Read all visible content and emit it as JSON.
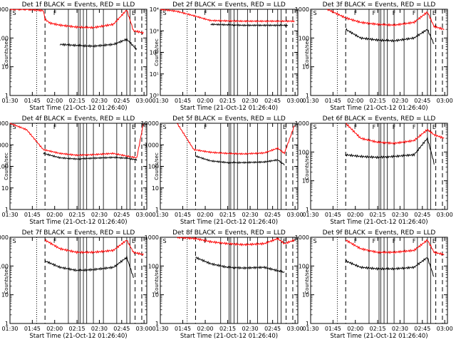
{
  "chart_data": [
    {
      "type": "line",
      "title": "Det 1f BLACK = Events, RED = LLD",
      "xlabel": "Start Time (21-Oct-12 01:26:40)",
      "ylabel": "Counts/sec",
      "x_ticks": [
        "01:30",
        "01:45",
        "02:00",
        "02:15",
        "02:30",
        "02:45",
        "03:00"
      ],
      "ylim": [
        1,
        1000
      ],
      "y_scale": "log",
      "y_ticks": [
        "1",
        "10",
        "100",
        "1000"
      ],
      "markers": [
        "S",
        "F",
        "E"
      ],
      "series": [
        {
          "color": "#000000",
          "x": [
            21,
            24,
            30,
            40,
            50,
            62,
            70,
            76
          ],
          "values": [
            null,
            null,
            60,
            55,
            52,
            60,
            90,
            40
          ]
        },
        {
          "color": "#ff0000",
          "x": [
            0,
            10,
            20,
            21,
            24,
            30,
            40,
            50,
            62,
            70,
            74,
            80
          ],
          "values": [
            1000,
            1000,
            900,
            450,
            330,
            280,
            240,
            230,
            300,
            950,
            180,
            150
          ]
        }
      ]
    },
    {
      "type": "line",
      "title": "Det 2f BLACK = Events, RED = LLD",
      "xlabel": "Start Time (21-Oct-12 01:26:40)",
      "ylabel": "Counts/sec",
      "x_ticks": [
        "01:30",
        "01:45",
        "02:00",
        "02:15",
        "02:30",
        "02:45",
        "03:00"
      ],
      "ylim": [
        1,
        10000
      ],
      "y_scale": "log",
      "y_ticks": [
        "10⁰",
        "10¹",
        "10²",
        "10³",
        "10⁴"
      ],
      "markers": [
        "S",
        "F"
      ],
      "series": [
        {
          "color": "#000000",
          "x": [
            20,
            30,
            50,
            70,
            76
          ],
          "values": [
            null,
            2000,
            1800,
            1800,
            1800
          ]
        },
        {
          "color": "#ff0000",
          "x": [
            0,
            10,
            20,
            30,
            50,
            70,
            80
          ],
          "values": [
            10000,
            8000,
            5000,
            3000,
            2800,
            2800,
            2800
          ]
        }
      ]
    },
    {
      "type": "line",
      "title": "Det 3f BLACK = Events, RED = LLD",
      "xlabel": "Start Time (21-Oct-12 01:26:40)",
      "ylabel": "Counts/sec",
      "x_ticks": [
        "01:30",
        "01:45",
        "02:00",
        "02:15",
        "02:30",
        "02:45",
        "03:00"
      ],
      "ylim": [
        1,
        1000
      ],
      "y_scale": "log",
      "y_ticks": [
        "1",
        "10",
        "100",
        "1000"
      ],
      "markers": [
        "S",
        "F",
        "F",
        "F",
        "F",
        "E"
      ],
      "series": [
        {
          "color": "#000000",
          "x": [
            21,
            30,
            40,
            50,
            62,
            70,
            74
          ],
          "values": [
            200,
            100,
            85,
            80,
            100,
            200,
            60
          ]
        },
        {
          "color": "#ff0000",
          "x": [
            10,
            21,
            30,
            40,
            50,
            62,
            70,
            74,
            80
          ],
          "values": [
            1000,
            500,
            350,
            300,
            280,
            350,
            800,
            250,
            200
          ]
        }
      ]
    },
    {
      "type": "line",
      "title": "Det 4f BLACK = Events, RED = LLD",
      "xlabel": "Start Time (21-Oct-12 01:26:40)",
      "ylabel": "Counts/sec",
      "x_ticks": [
        "01:30",
        "01:45",
        "02:00",
        "02:15",
        "02:30",
        "02:45",
        "03:00"
      ],
      "ylim": [
        1,
        10000
      ],
      "y_scale": "log",
      "y_ticks": [
        "1",
        "10",
        "100",
        "1000",
        "10000"
      ],
      "markers": [
        "S",
        "F",
        "E"
      ],
      "series": [
        {
          "color": "#000000",
          "x": [
            20,
            30,
            40,
            50,
            62,
            70,
            76
          ],
          "values": [
            400,
            250,
            220,
            240,
            260,
            240,
            200
          ]
        },
        {
          "color": "#ff0000",
          "x": [
            0,
            10,
            20,
            30,
            40,
            50,
            62,
            70,
            76,
            80
          ],
          "values": [
            10000,
            5000,
            600,
            400,
            330,
            350,
            400,
            300,
            250,
            10000
          ]
        }
      ]
    },
    {
      "type": "line",
      "title": "Det 5f BLACK = Events, RED = LLD",
      "xlabel": "Start Time (21-Oct-12 01:26:40)",
      "ylabel": "Counts/sec",
      "x_ticks": [
        "01:30",
        "01:45",
        "02:00",
        "02:15",
        "02:30",
        "02:45",
        "03:00"
      ],
      "ylim": [
        1,
        10000
      ],
      "y_scale": "log",
      "y_ticks": [
        "1",
        "10",
        "100",
        "1000",
        "10000"
      ],
      "markers": [
        "S",
        "F",
        "E"
      ],
      "series": [
        {
          "color": "#000000",
          "x": [
            21,
            30,
            40,
            50,
            62,
            70,
            74
          ],
          "values": [
            300,
            180,
            150,
            150,
            160,
            200,
            120
          ]
        },
        {
          "color": "#ff0000",
          "x": [
            10,
            20,
            30,
            40,
            50,
            62,
            70,
            74,
            80
          ],
          "values": [
            10000,
            600,
            450,
            400,
            380,
            420,
            700,
            400,
            8000
          ]
        }
      ]
    },
    {
      "type": "line",
      "title": "Det 6f BLACK = Events, RED = LLD",
      "xlabel": "Start Time (21-Oct-12 01:26:40)",
      "ylabel": "Counts/sec",
      "x_ticks": [
        "01:30",
        "01:45",
        "02:00",
        "02:15",
        "02:30",
        "02:45",
        "03:00"
      ],
      "ylim": [
        1,
        1000
      ],
      "y_scale": "log",
      "y_ticks": [
        "1",
        "10",
        "100",
        "1000"
      ],
      "markers": [
        "S",
        "F",
        "F",
        "F",
        "F",
        "E"
      ],
      "series": [
        {
          "color": "#000000",
          "x": [
            21,
            30,
            40,
            50,
            62,
            70,
            74
          ],
          "values": [
            80,
            70,
            65,
            70,
            80,
            300,
            40
          ]
        },
        {
          "color": "#ff0000",
          "x": [
            21,
            30,
            40,
            50,
            62,
            70,
            74,
            80
          ],
          "values": [
            1000,
            300,
            220,
            200,
            250,
            600,
            400,
            300
          ]
        }
      ]
    },
    {
      "type": "line",
      "title": "Det 7f BLACK = Events, RED = LLD",
      "xlabel": "Start Time (21-Oct-12 01:26:40)",
      "ylabel": "Counts/sec",
      "x_ticks": [
        "01:30",
        "01:45",
        "02:00",
        "02:15",
        "02:30",
        "02:45",
        "03:00"
      ],
      "ylim": [
        1,
        1000
      ],
      "y_scale": "log",
      "y_ticks": [
        "1",
        "10",
        "100",
        "1000"
      ],
      "markers": [
        "S",
        "F",
        "E"
      ],
      "series": [
        {
          "color": "#000000",
          "x": [
            21,
            30,
            40,
            50,
            62,
            70,
            74
          ],
          "values": [
            150,
            90,
            70,
            75,
            90,
            200,
            40
          ]
        },
        {
          "color": "#ff0000",
          "x": [
            21,
            30,
            40,
            50,
            62,
            70,
            74,
            80
          ],
          "values": [
            800,
            400,
            300,
            300,
            350,
            800,
            300,
            250
          ]
        }
      ]
    },
    {
      "type": "line",
      "title": "Det 8f BLACK = Events, RED = LLD",
      "xlabel": "Start Time (21-Oct-12 01:26:40)",
      "ylabel": "Counts/sec",
      "x_ticks": [
        "01:30",
        "01:45",
        "02:00",
        "02:15",
        "02:30",
        "02:45",
        "03:00"
      ],
      "ylim": [
        1,
        1000
      ],
      "y_scale": "log",
      "y_ticks": [
        "1",
        "10",
        "100",
        "1000"
      ],
      "markers": [
        "S",
        "F",
        "E"
      ],
      "series": [
        {
          "color": "#000000",
          "x": [
            21,
            30,
            40,
            50,
            62,
            74
          ],
          "values": [
            200,
            120,
            90,
            85,
            90,
            60
          ]
        },
        {
          "color": "#ff0000",
          "x": [
            10,
            21,
            30,
            40,
            50,
            62,
            70,
            74,
            80
          ],
          "values": [
            1000,
            900,
            700,
            600,
            550,
            600,
            900,
            600,
            800
          ]
        }
      ]
    },
    {
      "type": "line",
      "title": "Det 9f BLACK = Events, RED = LLD",
      "xlabel": "Start Time (21-Oct-12 01:26:40)",
      "ylabel": "Counts/sec",
      "x_ticks": [
        "01:30",
        "01:45",
        "02:00",
        "02:15",
        "02:30",
        "02:45",
        "03:00"
      ],
      "ylim": [
        1,
        1000
      ],
      "y_scale": "log",
      "y_ticks": [
        "1",
        "10",
        "100",
        "1000"
      ],
      "markers": [
        "S",
        "F",
        "F",
        "F",
        "F",
        "E"
      ],
      "series": [
        {
          "color": "#000000",
          "x": [
            21,
            30,
            40,
            50,
            62,
            70,
            74
          ],
          "values": [
            150,
            90,
            80,
            80,
            90,
            200,
            40
          ]
        },
        {
          "color": "#ff0000",
          "x": [
            21,
            30,
            40,
            50,
            62,
            70,
            74,
            80
          ],
          "values": [
            800,
            400,
            300,
            300,
            350,
            800,
            300,
            250
          ]
        }
      ]
    }
  ]
}
